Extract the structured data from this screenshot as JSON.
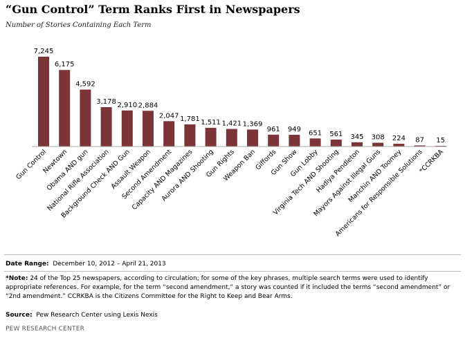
{
  "title": "“Gun Control” Term Ranks First in Newspapers",
  "subtitle": "Number of Stories Containing Each Term",
  "footer": {
    "date_label": "Date Range:",
    "date_value": "December 10, 2012 – April 21, 2013",
    "note_label": "*Note:",
    "note_text": "24 of the Top 25 newspapers, according to circulation; for some of the key phrases, multiple search terms were used to identify appropriate references. For example, for the term “second amendment,” a story was counted if it included the terms “second amendment” or “2nd amendment.” CCRKBA is the Citizens Committee for the Right to Keep and Bear Arms.",
    "source_label": "Source:",
    "source_value": "Pew Research Center using Lexis Nexis",
    "org": "PEW RESEARCH CENTER"
  },
  "chart_data": {
    "type": "bar",
    "title": "“Gun Control” Term Ranks First in Newspapers",
    "subtitle": "Number of Stories Containing Each Term",
    "categories": [
      "Gun Control",
      "Newtown",
      "Obama AND gun",
      "National Rifle Association",
      "Background Check AND Gun",
      "Assault Weapon",
      "Second Amendment",
      "Capacity AND Magazines",
      "Aurora AND Shooting",
      "Gun Rights",
      "Weapon Ban",
      "Giffords",
      "Gun Show",
      "Gun Lobby",
      "Virginia Tech AND Shooting",
      "Hadiya Pendleton",
      "Mayors Against Illegal Guns",
      "Manchin AND Toomey",
      "Americans for Responsible Solutions",
      "*CCRKBA"
    ],
    "values": [
      7245,
      6175,
      4592,
      3178,
      2910,
      2884,
      2047,
      1781,
      1511,
      1421,
      1369,
      961,
      949,
      651,
      561,
      345,
      308,
      224,
      87,
      15
    ],
    "value_labels": [
      "7,245",
      "6,175",
      "4,592",
      "3,178",
      "2,910",
      "2,884",
      "2,047",
      "1,781",
      "1,511",
      "1,421",
      "1,369",
      "961",
      "949",
      "651",
      "561",
      "345",
      "308",
      "224",
      "87",
      "15"
    ],
    "ylim": [
      0,
      7245
    ],
    "grid": false,
    "legend": "none",
    "bar_color": "#7b3438"
  }
}
